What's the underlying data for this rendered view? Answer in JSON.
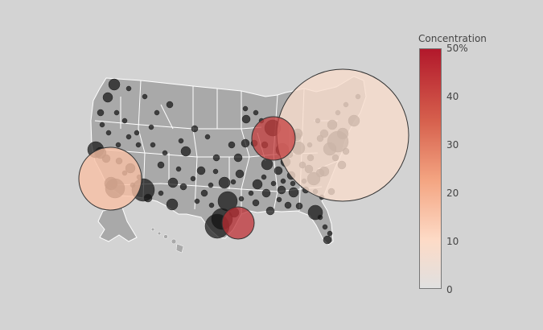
{
  "colorbar": {
    "title": "Concentration",
    "ticks": [
      "50%",
      "40",
      "30",
      "20",
      "10",
      "0"
    ],
    "colors": {
      "top": "#b2182b",
      "mid_high": "#d6604d",
      "mid": "#f4a582",
      "mid_low": "#fddbc7",
      "bottom": "#e0e0e0"
    }
  },
  "map": {
    "land_color": "#a9a9a9",
    "border_color": "#ffffff",
    "background": "#d3d3d3",
    "marker_edge": "#333333"
  },
  "chart_data": {
    "type": "scatter",
    "title": "",
    "color_variable": "Concentration",
    "color_range": [
      0,
      50
    ],
    "bubbles": [
      {
        "region": "Northeast",
        "concentration": 8
      },
      {
        "region": "Midwest",
        "concentration": 42
      },
      {
        "region": "California",
        "concentration": 15
      },
      {
        "region": "Texas",
        "concentration": 45
      }
    ]
  }
}
